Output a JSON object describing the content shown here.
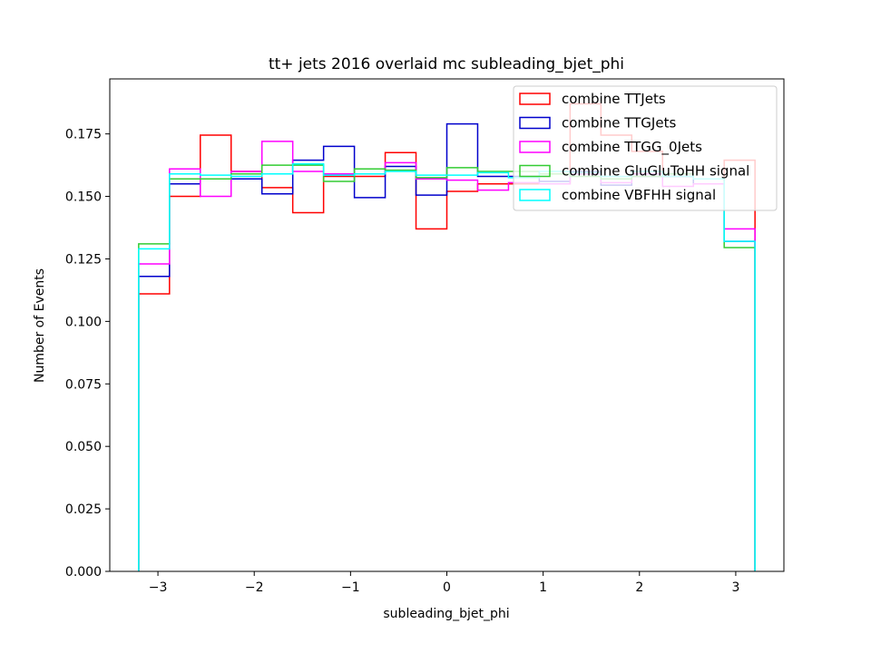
{
  "chart_data": {
    "type": "histogram",
    "title": "tt+ jets 2016 overlaid mc subleading_bjet_phi",
    "xlabel": "subleading_bjet_phi",
    "ylabel": "Number of Events",
    "xlim": [
      -3.5,
      3.5
    ],
    "ylim": [
      0,
      0.197
    ],
    "xticks": [
      -3,
      -2,
      -1,
      0,
      1,
      2,
      3
    ],
    "xtick_labels": [
      "−3",
      "−2",
      "−1",
      "0",
      "1",
      "2",
      "3"
    ],
    "yticks": [
      0,
      0.025,
      0.05,
      0.075,
      0.1,
      0.125,
      0.15,
      0.175
    ],
    "ytick_labels": [
      "0.000",
      "0.025",
      "0.050",
      "0.075",
      "0.100",
      "0.125",
      "0.150",
      "0.175"
    ],
    "bin_edges": [
      -3.2,
      -2.88,
      -2.56,
      -2.24,
      -1.92,
      -1.6,
      -1.28,
      -0.96,
      -0.64,
      -0.32,
      0.0,
      0.32,
      0.64,
      0.96,
      1.28,
      1.6,
      1.92,
      2.24,
      2.56,
      2.88,
      3.2
    ],
    "legend_position": "top-right",
    "series": [
      {
        "name": "combine TTJets",
        "color": "#ff0000",
        "values": [
          0.111,
          0.15,
          0.1745,
          0.16,
          0.1535,
          0.1435,
          0.158,
          0.158,
          0.1675,
          0.137,
          0.152,
          0.155,
          0.155,
          0.155,
          0.187,
          0.1745,
          0.168,
          0.158,
          0.155,
          0.1645
        ]
      },
      {
        "name": "combine TTGJets",
        "color": "#0000cc",
        "values": [
          0.118,
          0.155,
          0.157,
          0.157,
          0.151,
          0.1645,
          0.17,
          0.1495,
          0.162,
          0.1505,
          0.179,
          0.158,
          0.158,
          0.156,
          0.16,
          0.1545,
          0.158,
          0.158,
          0.155,
          0.132
        ]
      },
      {
        "name": "combine TTGG_0Jets",
        "color": "#ff00ff",
        "values": [
          0.123,
          0.161,
          0.15,
          0.16,
          0.172,
          0.16,
          0.159,
          0.159,
          0.1635,
          0.157,
          0.1565,
          0.1525,
          0.1555,
          0.155,
          0.159,
          0.1555,
          0.159,
          0.154,
          0.155,
          0.137
        ]
      },
      {
        "name": "combine GluGluToHH signal",
        "color": "#33cc33",
        "values": [
          0.131,
          0.157,
          0.157,
          0.159,
          0.1625,
          0.1625,
          0.156,
          0.161,
          0.1605,
          0.1575,
          0.1615,
          0.16,
          0.16,
          0.159,
          0.158,
          0.157,
          0.158,
          0.159,
          0.157,
          0.1295
        ]
      },
      {
        "name": "combine VBFHH signal",
        "color": "#00ffff",
        "values": [
          0.129,
          0.159,
          0.1585,
          0.158,
          0.159,
          0.163,
          0.1585,
          0.159,
          0.16,
          0.1585,
          0.1585,
          0.1595,
          0.1575,
          0.16,
          0.1595,
          0.158,
          0.16,
          0.158,
          0.157,
          0.132
        ]
      }
    ]
  }
}
